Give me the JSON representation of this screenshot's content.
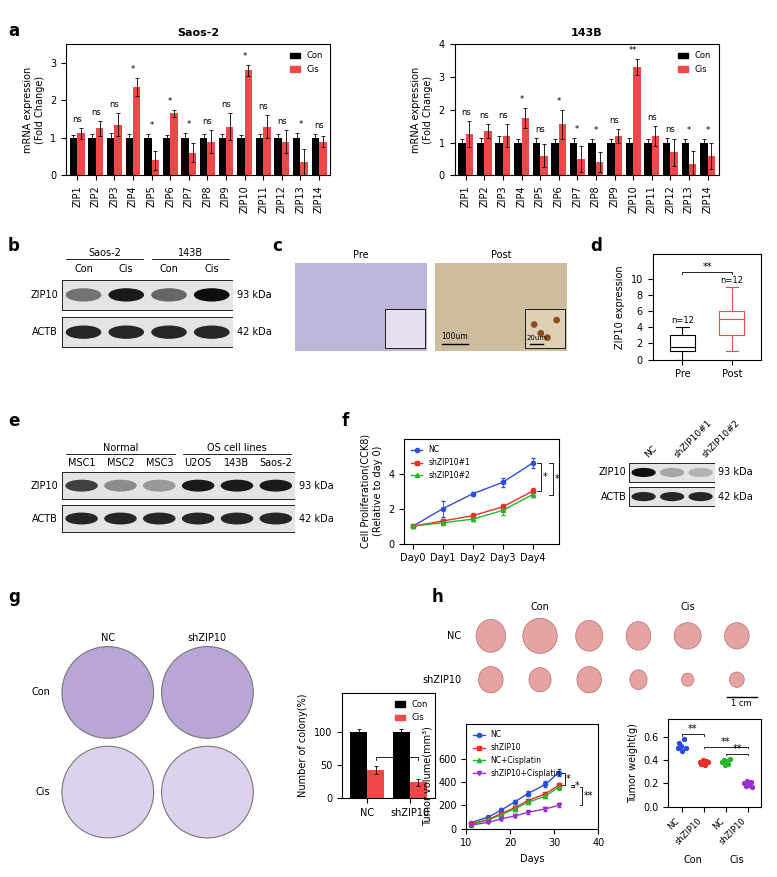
{
  "panel_labels": [
    "a",
    "b",
    "c",
    "d",
    "e",
    "f",
    "g",
    "h"
  ],
  "chart_data": [
    {
      "type": "bar",
      "title": "Saos-2",
      "y_label": "mRNA expression\n(Fold Change)",
      "categories": [
        "ZIP1",
        "ZIP2",
        "ZIP3",
        "ZIP4",
        "ZIP5",
        "ZIP6",
        "ZIP7",
        "ZIP8",
        "ZIP9",
        "ZIP10",
        "ZIP11",
        "ZIP12",
        "ZIP13",
        "ZIP14"
      ],
      "series": [
        {
          "name": "Con",
          "color": "#000000",
          "values": [
            1,
            1,
            1,
            1,
            1,
            1,
            1,
            1,
            1,
            1,
            1,
            1,
            1,
            1
          ],
          "errors": [
            0.08,
            0.1,
            0.12,
            0.1,
            0.1,
            0.08,
            0.12,
            0.1,
            0.1,
            0.08,
            0.1,
            0.1,
            0.12,
            0.1
          ]
        },
        {
          "name": "Cis",
          "color": "#f04848",
          "values": [
            1.12,
            1.25,
            1.35,
            2.35,
            0.4,
            1.65,
            0.6,
            0.9,
            1.3,
            2.8,
            1.3,
            0.9,
            0.35,
            0.9
          ],
          "errors": [
            0.15,
            0.2,
            0.3,
            0.25,
            0.25,
            0.1,
            0.25,
            0.3,
            0.35,
            0.15,
            0.3,
            0.3,
            0.35,
            0.15
          ]
        }
      ],
      "annotations": [
        "ns",
        "ns",
        "ns",
        "*",
        "*",
        "*",
        "*",
        "ns",
        "ns",
        "*",
        "ns",
        "ns",
        "*",
        "ns"
      ],
      "ylim": [
        0,
        3.5
      ],
      "yticks": [
        0,
        1,
        2,
        3
      ],
      "legend": "upper right"
    },
    {
      "type": "bar",
      "title": "143B",
      "y_label": "mRNA expression\n(Fold Change)",
      "categories": [
        "ZIP1",
        "ZIP2",
        "ZIP3",
        "ZIP4",
        "ZIP5",
        "ZIP6",
        "ZIP7",
        "ZIP8",
        "ZIP9",
        "ZIP10",
        "ZIP11",
        "ZIP12",
        "ZIP13",
        "ZIP14"
      ],
      "series": [
        {
          "name": "Con",
          "color": "#000000",
          "values": [
            1,
            1,
            1,
            1,
            1,
            1,
            1,
            1,
            1,
            1,
            1,
            1,
            1,
            1
          ],
          "errors": [
            0.12,
            0.15,
            0.2,
            0.12,
            0.15,
            0.1,
            0.15,
            0.1,
            0.1,
            0.15,
            0.12,
            0.15,
            0.1,
            0.1
          ]
        },
        {
          "name": "Cis",
          "color": "#f04848",
          "values": [
            1.25,
            1.35,
            1.2,
            1.75,
            0.6,
            1.55,
            0.5,
            0.4,
            1.2,
            3.3,
            1.2,
            0.7,
            0.35,
            0.6
          ],
          "errors": [
            0.4,
            0.2,
            0.35,
            0.3,
            0.35,
            0.45,
            0.4,
            0.3,
            0.2,
            0.25,
            0.3,
            0.4,
            0.4,
            0.4
          ]
        }
      ],
      "annotations": [
        "ns",
        "ns",
        "ns",
        "*",
        "ns",
        "*",
        "*",
        "*",
        "ns",
        "**",
        "ns",
        "ns",
        "*",
        "*"
      ],
      "ylim": [
        0,
        4
      ],
      "yticks": [
        0,
        1,
        2,
        3,
        4
      ],
      "legend": "upper right"
    },
    {
      "type": "box",
      "y_label": "ZIP10 expression",
      "categories": [
        "Pre",
        "Post"
      ],
      "colors": [
        "#000000",
        "#f04848"
      ],
      "boxes": [
        {
          "min": 0,
          "q1": 1,
          "median": 1.5,
          "q3": 3,
          "max": 4
        },
        {
          "min": 1,
          "q1": 3,
          "median": 5,
          "q3": 6,
          "max": 9
        }
      ],
      "n_labels": [
        "n=12",
        "n=12"
      ],
      "annotations": [
        {
          "text": "**",
          "between": [
            0,
            1
          ]
        }
      ],
      "ylim": [
        0,
        13
      ],
      "yticks": [
        0,
        2,
        4,
        6,
        8,
        10
      ]
    },
    {
      "type": "line",
      "y_label": "Cell Proliferation(CCK8)\n(Relative to day 0)",
      "categories": [
        "Day0",
        "Day1",
        "Day2",
        "Day3",
        "Day4"
      ],
      "series": [
        {
          "name": "NC",
          "color": "#2b4ee0",
          "marker": "o",
          "values": [
            1,
            2,
            2.85,
            3.5,
            4.6
          ],
          "errors": [
            0,
            0.45,
            0.1,
            0.25,
            0.3
          ]
        },
        {
          "name": "shZIP10#1",
          "color": "#e8302a",
          "marker": "s",
          "values": [
            1,
            1.3,
            1.6,
            2.1,
            3.0
          ],
          "errors": [
            0,
            0.1,
            0.15,
            0.15,
            0.2
          ]
        },
        {
          "name": "shZIP10#2",
          "color": "#2ab42a",
          "marker": "^",
          "values": [
            1,
            1.2,
            1.4,
            1.9,
            2.8
          ],
          "errors": [
            0,
            0.1,
            0.1,
            0.25,
            0.15
          ]
        }
      ],
      "annotations": [
        {
          "text": "*",
          "between": [
            "NC",
            "shZIP10#1"
          ]
        },
        {
          "text": "*",
          "between": [
            "NC",
            "shZIP10#2"
          ]
        }
      ],
      "ylim": [
        0,
        6
      ],
      "yticks": [
        0,
        2,
        4
      ],
      "legend": "upper left"
    },
    {
      "type": "bar",
      "y_label": "Number of colony(%)",
      "categories": [
        "NC",
        "shZIP10"
      ],
      "series": [
        {
          "name": "Con",
          "color": "#000000",
          "values": [
            100,
            100
          ],
          "errors": [
            5,
            5
          ]
        },
        {
          "name": "Cis",
          "color": "#f04848",
          "values": [
            42,
            24
          ],
          "errors": [
            6,
            5
          ]
        }
      ],
      "annotations": [
        {
          "text": "*",
          "between": [
            "NC",
            "shZIP10"
          ],
          "series": "Cis"
        }
      ],
      "ylim": [
        0,
        160
      ],
      "yticks": [
        0,
        50,
        100
      ],
      "legend": "upper right"
    },
    {
      "type": "line",
      "x_label": "Days",
      "y_label": "Tumor volume(mm³)",
      "x": [
        11,
        15,
        18,
        21,
        24,
        28,
        31
      ],
      "series": [
        {
          "name": "NC",
          "color": "#2b4ee0",
          "marker": "o",
          "values": [
            50,
            100,
            160,
            230,
            300,
            380,
            480
          ],
          "errors": [
            10,
            12,
            15,
            18,
            20,
            25,
            30
          ]
        },
        {
          "name": "shZIP10",
          "color": "#e8302a",
          "marker": "s",
          "values": [
            40,
            80,
            130,
            180,
            240,
            300,
            370
          ],
          "errors": [
            8,
            10,
            12,
            15,
            15,
            18,
            20
          ]
        },
        {
          "name": "NC+Cisplatin",
          "color": "#2ab42a",
          "marker": "^",
          "values": [
            35,
            75,
            120,
            170,
            225,
            280,
            355
          ],
          "errors": [
            8,
            10,
            12,
            15,
            15,
            18,
            20
          ]
        },
        {
          "name": "shZIP10+Cisplatin",
          "color": "#9b30d0",
          "marker": "v",
          "values": [
            30,
            55,
            85,
            110,
            140,
            170,
            200
          ],
          "errors": [
            6,
            8,
            10,
            12,
            12,
            15,
            18
          ]
        }
      ],
      "annotations": [
        {
          "text": "*",
          "between": [
            "NC",
            "shZIP10"
          ]
        },
        {
          "text": "*",
          "between": [
            "shZIP10",
            "NC+Cisplatin"
          ]
        },
        {
          "text": "**",
          "between": [
            "NC+Cisplatin",
            "shZIP10+Cisplatin"
          ]
        }
      ],
      "xlim": [
        10,
        40
      ],
      "xticks": [
        10,
        20,
        30,
        40
      ],
      "ylim": [
        0,
        900
      ],
      "yticks": [
        0,
        200,
        400,
        600
      ],
      "legend": "upper left"
    },
    {
      "type": "scatter",
      "y_label": "Tumor weight(g)",
      "categories": [
        "NC",
        "shZIP10",
        "NC",
        "shZIP10"
      ],
      "groups": [
        "Con",
        "Cis"
      ],
      "colors": [
        "#2b4ee0",
        "#e8302a",
        "#2ab42a",
        "#9b30d0"
      ],
      "values": [
        [
          0.5,
          0.55,
          0.52,
          0.48,
          0.58,
          0.5
        ],
        [
          0.38,
          0.37,
          0.4,
          0.36,
          0.39,
          0.38
        ],
        [
          0.38,
          0.4,
          0.36,
          0.39,
          0.37,
          0.41
        ],
        [
          0.2,
          0.18,
          0.22,
          0.19,
          0.21,
          0.17
        ]
      ],
      "annotations": [
        {
          "text": "**",
          "between": [
            0,
            1
          ]
        },
        {
          "text": "**",
          "between": [
            2,
            3
          ]
        },
        {
          "text": "**",
          "between": [
            1,
            3
          ]
        }
      ],
      "ylim": [
        0,
        0.75
      ],
      "yticks": [
        {
          "value": 0,
          "label": "0.0"
        },
        0.2,
        0.4,
        0.6
      ]
    }
  ],
  "blots": [
    {
      "groups": [
        {
          "label": "Saos-2",
          "lanes": 2
        },
        {
          "label": "143B",
          "lanes": 2
        }
      ],
      "lanes": [
        "Con",
        "Cis",
        "Con",
        "Cis"
      ],
      "rows": [
        {
          "label": "ZIP10",
          "size": "93 kDa",
          "intensities": [
            0.55,
            0.9,
            0.6,
            0.95
          ]
        },
        {
          "label": "ACTB",
          "size": "42 kDa",
          "intensities": [
            0.85,
            0.85,
            0.85,
            0.85
          ]
        }
      ]
    },
    {
      "groups": [
        {
          "label": "Normal",
          "lanes": 3
        },
        {
          "label": "OS cell lines",
          "lanes": 3
        }
      ],
      "lanes": [
        "MSC1",
        "MSC2",
        "MSC3",
        "U2OS",
        "143B",
        "Saos-2"
      ],
      "rows": [
        {
          "label": "ZIP10",
          "size": "93 kDa",
          "intensities": [
            0.75,
            0.45,
            0.4,
            0.9,
            0.9,
            0.9
          ]
        },
        {
          "label": "ACTB",
          "size": "42 kDa",
          "intensities": [
            0.85,
            0.85,
            0.85,
            0.85,
            0.85,
            0.85
          ]
        }
      ]
    },
    {
      "groups": [],
      "lanes": [
        "NC",
        "shZIP10#1",
        "shZIP10#2"
      ],
      "rows": [
        {
          "label": "ZIP10",
          "size": "93 kDa",
          "intensities": [
            0.95,
            0.35,
            0.3
          ]
        },
        {
          "label": "ACTB",
          "size": "42 kDa",
          "intensities": [
            0.85,
            0.85,
            0.85
          ]
        }
      ]
    }
  ],
  "images": {
    "ihc": {
      "labels": [
        "Pre",
        "Post"
      ],
      "scale_bars": [
        "100um",
        "20um"
      ]
    },
    "colony": {
      "columns": [
        "NC",
        "shZIP10"
      ],
      "rows": [
        "Con",
        "Cis"
      ]
    },
    "tumors": {
      "columns": [
        "Con",
        "Cis"
      ],
      "rows": [
        "NC",
        "shZIP10"
      ],
      "scale_bar": "1 cm"
    }
  }
}
